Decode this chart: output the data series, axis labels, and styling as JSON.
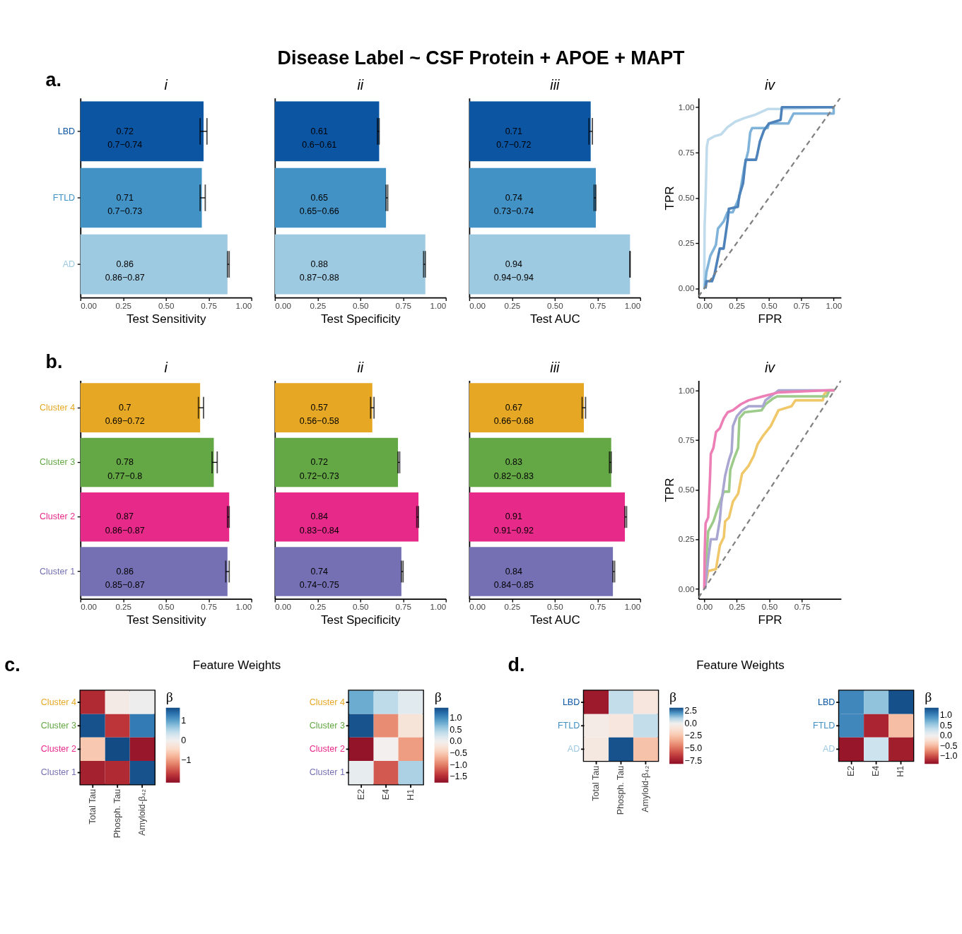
{
  "chart_data": [
    {
      "type": "bar",
      "orientation": "horizontal",
      "title": "i",
      "xlabel": "Test Sensitivity",
      "annotations": [
        "Disease Label ~ CSF Protein + APOE + MAPT",
        "a."
      ],
      "categories": [
        "LBD",
        "FTLD",
        "AD"
      ],
      "values": [
        0.72,
        0.71,
        0.86
      ],
      "colors": [
        "#0b55a3",
        "#4292c6",
        "#9ecae1"
      ],
      "errors": [
        [
          0.7,
          0.74
        ],
        [
          0.7,
          0.73
        ],
        [
          0.86,
          0.87
        ]
      ],
      "value_labels": [
        "0.72\n0.7−0.74",
        "0.71\n0.7−0.73",
        "0.86\n0.86−0.87"
      ],
      "xlim": [
        0,
        1
      ],
      "xticks": [
        {
          "value": 0,
          "label": "0.00"
        },
        {
          "value": 0.25,
          "label": "0.25"
        },
        {
          "value": 0.5,
          "label": "0.50"
        },
        {
          "value": 0.75,
          "label": "0.75"
        },
        {
          "value": 1,
          "label": "1.00"
        }
      ]
    },
    {
      "type": "bar",
      "orientation": "horizontal",
      "title": "ii",
      "xlabel": "Test Specificity",
      "tick_labels": "x",
      "categories": [
        null,
        null,
        null
      ],
      "values": [
        0.61,
        0.65,
        0.88
      ],
      "colors": [
        "#0b55a3",
        "#4292c6",
        "#9ecae1"
      ],
      "errors": [
        [
          0.6,
          0.61
        ],
        [
          0.65,
          0.66
        ],
        [
          0.87,
          0.88
        ]
      ],
      "value_labels": [
        "0.61\n0.6−0.61",
        "0.65\n0.65−0.66",
        "0.88\n0.87−0.88"
      ],
      "xlim": [
        0,
        1
      ],
      "xticks": [
        {
          "value": 0,
          "label": "0.00"
        },
        {
          "value": 0.25,
          "label": "0.25"
        },
        {
          "value": 0.5,
          "label": "0.50"
        },
        {
          "value": 0.75,
          "label": "0.75"
        },
        {
          "value": 1,
          "label": "1.00"
        }
      ]
    },
    {
      "type": "bar",
      "orientation": "horizontal",
      "title": "iii",
      "xlabel": "Test AUC",
      "tick_labels": "x",
      "categories": [
        null,
        null,
        null
      ],
      "values": [
        0.71,
        0.74,
        0.94
      ],
      "colors": [
        "#0b55a3",
        "#4292c6",
        "#9ecae1"
      ],
      "errors": [
        [
          0.7,
          0.72
        ],
        [
          0.73,
          0.74
        ],
        [
          0.94,
          0.94
        ]
      ],
      "value_labels": [
        "0.71\n0.7−0.72",
        "0.74\n0.73−0.74",
        "0.94\n0.94−0.94"
      ],
      "xlim": [
        0,
        1
      ],
      "xticks": [
        {
          "value": 0,
          "label": "0.00"
        },
        {
          "value": 0.25,
          "label": "0.25"
        },
        {
          "value": 0.5,
          "label": "0.50"
        },
        {
          "value": 0.75,
          "label": "0.75"
        },
        {
          "value": 1,
          "label": "1.00"
        }
      ]
    },
    {
      "type": "line",
      "title": "iv",
      "xlabel": "FPR",
      "ylabel": "TPR",
      "xlim": [
        -0.044,
        1.057
      ],
      "ylim": [
        -0.05,
        1.05
      ],
      "xticks": [
        {
          "value": 0,
          "label": "0.00"
        },
        {
          "value": 0.25,
          "label": "0.25"
        },
        {
          "value": 0.5,
          "label": "0.50"
        },
        {
          "value": 0.75,
          "label": "0.75"
        },
        {
          "value": 1,
          "label": "1.00"
        }
      ],
      "yticks": [
        {
          "value": 0,
          "label": "0.00"
        },
        {
          "value": 0.25,
          "label": "0.25"
        },
        {
          "value": 0.5,
          "label": "0.50"
        },
        {
          "value": 0.75,
          "label": "0.75"
        },
        {
          "value": 1,
          "label": "1.00"
        }
      ],
      "series": [
        {
          "color": "#c0dcec",
          "x": [
            0,
            0.003,
            0.01,
            0.02,
            0.03,
            0.08,
            0.13,
            0.18,
            0.24,
            0.31,
            0.4,
            0.49,
            0.6,
            1.0
          ],
          "values": [
            0,
            0.35,
            0.48,
            0.78,
            0.82,
            0.84,
            0.85,
            0.89,
            0.92,
            0.94,
            0.96,
            0.99,
            0.99,
            1.0
          ]
        },
        {
          "color": "#7fb3d9",
          "x": [
            0.003,
            0.017,
            0.047,
            0.09,
            0.106,
            0.15,
            0.18,
            0.22,
            0.27,
            0.31,
            0.34,
            0.355,
            0.37,
            0.49,
            0.5,
            0.65,
            0.69,
            1.0,
            1.0
          ],
          "values": [
            0,
            0.09,
            0.18,
            0.24,
            0.33,
            0.37,
            0.42,
            0.42,
            0.5,
            0.67,
            0.76,
            0.86,
            0.885,
            0.885,
            0.91,
            0.91,
            0.965,
            0.965,
            1.0
          ]
        },
        {
          "color": "#4d82ba",
          "x": [
            0.01,
            0.017,
            0.06,
            0.08,
            0.12,
            0.15,
            0.18,
            0.19,
            0.26,
            0.27,
            0.3,
            0.32,
            0.4,
            0.41,
            0.43,
            0.46,
            0.5,
            0.59,
            0.6,
            1.0
          ],
          "values": [
            0,
            0.04,
            0.04,
            0.08,
            0.22,
            0.22,
            0.37,
            0.44,
            0.45,
            0.51,
            0.58,
            0.71,
            0.71,
            0.74,
            0.81,
            0.87,
            0.91,
            0.93,
            1.0,
            1.0
          ]
        },
        {
          "type": "line",
          "color": "#808080",
          "line_style": "dashed",
          "x": [
            -0.044,
            1.05
          ],
          "values": [
            -0.044,
            1.05
          ]
        }
      ]
    },
    {
      "type": "bar",
      "orientation": "horizontal",
      "title": "i",
      "xlabel": "Test Sensitivity",
      "annotations": [
        "b."
      ],
      "categories": [
        "Cluster 4",
        "Cluster 3",
        "Cluster 2",
        "Cluster 1"
      ],
      "values": [
        0.7,
        0.78,
        0.87,
        0.86
      ],
      "colors": [
        "#e6a824",
        "#63a844",
        "#e7298a",
        "#7570b3"
      ],
      "errors": [
        [
          0.69,
          0.72
        ],
        [
          0.77,
          0.8
        ],
        [
          0.86,
          0.87
        ],
        [
          0.85,
          0.87
        ]
      ],
      "value_labels": [
        "0.7\n0.69−0.72",
        "0.78\n0.77−0.8",
        "0.87\n0.86−0.87",
        "0.86\n0.85−0.87"
      ],
      "xlim": [
        0,
        1
      ],
      "xticks": [
        {
          "value": 0,
          "label": "0.00"
        },
        {
          "value": 0.25,
          "label": "0.25"
        },
        {
          "value": 0.5,
          "label": "0.50"
        },
        {
          "value": 0.75,
          "label": "0.75"
        },
        {
          "value": 1,
          "label": "1.00"
        }
      ]
    },
    {
      "type": "bar",
      "orientation": "horizontal",
      "title": "ii",
      "xlabel": "Test Specificity",
      "tick_labels": "x",
      "categories": [
        null,
        null,
        null,
        null
      ],
      "values": [
        0.57,
        0.72,
        0.84,
        0.74
      ],
      "colors": [
        "#e6a824",
        "#63a844",
        "#e7298a",
        "#7570b3"
      ],
      "errors": [
        [
          0.56,
          0.58
        ],
        [
          0.72,
          0.73
        ],
        [
          0.83,
          0.84
        ],
        [
          0.74,
          0.75
        ]
      ],
      "value_labels": [
        "0.57\n0.56−0.58",
        "0.72\n0.72−0.73",
        "0.84\n0.83−0.84",
        "0.74\n0.74−0.75"
      ],
      "xlim": [
        0,
        1
      ],
      "xticks": [
        {
          "value": 0,
          "label": "0.00"
        },
        {
          "value": 0.25,
          "label": "0.25"
        },
        {
          "value": 0.5,
          "label": "0.50"
        },
        {
          "value": 0.75,
          "label": "0.75"
        },
        {
          "value": 1,
          "label": "1.00"
        }
      ]
    },
    {
      "type": "bar",
      "orientation": "horizontal",
      "title": "iii",
      "xlabel": "Test AUC",
      "tick_labels": "x",
      "categories": [
        null,
        null,
        null,
        null
      ],
      "values": [
        0.67,
        0.83,
        0.91,
        0.84
      ],
      "colors": [
        "#e6a824",
        "#63a844",
        "#e7298a",
        "#7570b3"
      ],
      "errors": [
        [
          0.66,
          0.68
        ],
        [
          0.82,
          0.83
        ],
        [
          0.91,
          0.92
        ],
        [
          0.84,
          0.85
        ]
      ],
      "value_labels": [
        "0.67\n0.66−0.68",
        "0.83\n0.82−0.83",
        "0.91\n0.91−0.92",
        "0.84\n0.84−0.85"
      ],
      "xlim": [
        0,
        1
      ],
      "xticks": [
        {
          "value": 0,
          "label": "0.00"
        },
        {
          "value": 0.25,
          "label": "0.25"
        },
        {
          "value": 0.5,
          "label": "0.50"
        },
        {
          "value": 0.75,
          "label": "0.75"
        },
        {
          "value": 1,
          "label": "1.00"
        }
      ]
    },
    {
      "type": "line",
      "title": "iv",
      "xlabel": "FPR",
      "ylabel": "TPR",
      "xlim": [
        -0.044,
        1.05
      ],
      "ylim": [
        -0.05,
        1.05
      ],
      "xticks": [
        {
          "value": 0,
          "label": "0.00"
        },
        {
          "value": 0.25,
          "label": "0.25"
        },
        {
          "value": 0.5,
          "label": "0.50"
        },
        {
          "value": 0.75,
          "label": "0.75"
        }
      ],
      "yticks": [
        {
          "value": 0,
          "label": "0.00"
        },
        {
          "value": 0.25,
          "label": "0.25"
        },
        {
          "value": 0.5,
          "label": "0.50"
        },
        {
          "value": 0.75,
          "label": "0.75"
        },
        {
          "value": 1,
          "label": "1.00"
        }
      ],
      "series": [
        {
          "color": "#f0c86a",
          "x": [
            0.007,
            0.03,
            0.09,
            0.12,
            0.15,
            0.16,
            0.19,
            0.22,
            0.26,
            0.29,
            0.34,
            0.38,
            0.41,
            0.45,
            0.51,
            0.57,
            0.67,
            0.7,
            0.91,
            0.92,
            0.95,
            1.0
          ],
          "values": [
            0.01,
            0.09,
            0.1,
            0.22,
            0.26,
            0.34,
            0.36,
            0.44,
            0.48,
            0.58,
            0.62,
            0.67,
            0.73,
            0.77,
            0.82,
            0.9,
            0.92,
            0.95,
            0.95,
            0.98,
            1.0,
            1.0
          ]
        },
        {
          "color": "#9ccb8a",
          "x": [
            0.003,
            0.03,
            0.07,
            0.1,
            0.15,
            0.19,
            0.2,
            0.23,
            0.26,
            0.27,
            0.31,
            0.44,
            0.47,
            0.53,
            0.56,
            0.94,
            0.96,
            1.0
          ],
          "values": [
            0.03,
            0.29,
            0.34,
            0.4,
            0.49,
            0.49,
            0.6,
            0.66,
            0.71,
            0.86,
            0.89,
            0.9,
            0.93,
            0.96,
            0.97,
            0.97,
            1.0,
            1.0
          ]
        },
        {
          "color": "#a9a7d1",
          "x": [
            0.007,
            0.03,
            0.05,
            0.095,
            0.12,
            0.13,
            0.16,
            0.19,
            0.21,
            0.22,
            0.25,
            0.29,
            0.34,
            0.45,
            0.47,
            0.57,
            1.0
          ],
          "values": [
            0,
            0.15,
            0.25,
            0.25,
            0.35,
            0.43,
            0.57,
            0.65,
            0.69,
            0.82,
            0.87,
            0.9,
            0.92,
            0.92,
            0.95,
            1.0,
            1.0
          ]
        },
        {
          "color": "#ec7fb5",
          "x": [
            0,
            0.003,
            0.01,
            0.03,
            0.044,
            0.05,
            0.07,
            0.09,
            0.12,
            0.15,
            0.18,
            0.22,
            0.28,
            0.34,
            0.45,
            0.57,
            0.94,
            1.0
          ],
          "values": [
            0,
            0.18,
            0.33,
            0.36,
            0.56,
            0.68,
            0.71,
            0.79,
            0.81,
            0.86,
            0.89,
            0.9,
            0.93,
            0.95,
            0.97,
            0.99,
            1.0,
            1.0
          ]
        },
        {
          "type": "line",
          "color": "#808080",
          "line_style": "dashed",
          "x": [
            -0.044,
            1.05
          ],
          "values": [
            -0.044,
            1.05
          ]
        }
      ]
    },
    {
      "type": "heatmap",
      "annotations": [
        "c.",
        "Feature Weights"
      ],
      "legend_title": "β",
      "categories": [
        "Total Tau",
        "Phosph. Tau",
        "Amyloid-β₄₂"
      ],
      "y_categories": [
        "Cluster 4",
        "Cluster 3",
        "Cluster 2",
        "Cluster 1"
      ],
      "cells": [
        [
          -1.8,
          -0.1,
          0.05
        ],
        [
          1.6,
          -1.7,
          1.3
        ],
        [
          -0.6,
          1.65,
          -2.0
        ],
        [
          -1.9,
          -1.8,
          1.6
        ]
      ],
      "clim": [
        -2.1,
        1.65
      ],
      "cticks": [
        {
          "value": -1,
          "label": "−1"
        },
        0,
        1
      ]
    },
    {
      "type": "heatmap",
      "legend_title": "β",
      "categories": [
        "E2",
        "E4",
        "H1"
      ],
      "y_categories": [
        "Cluster 4",
        "Cluster 3",
        "Cluster 2",
        "Cluster 1"
      ],
      "cells": [
        [
          0.8,
          0.4,
          0.15
        ],
        [
          1.4,
          -0.9,
          -0.2
        ],
        [
          -1.7,
          0.0,
          -0.8
        ],
        [
          0.1,
          -1.2,
          0.5
        ]
      ],
      "clim": [
        -1.75,
        1.45
      ],
      "cticks": [
        {
          "value": -1.5,
          "label": "−1.5"
        },
        {
          "value": -1,
          "label": "−1.0"
        },
        {
          "value": -0.5,
          "label": "−0.5"
        },
        {
          "value": 0,
          "label": "0.0"
        },
        {
          "value": 0.5,
          "label": "0.5"
        },
        {
          "value": 1,
          "label": "1.0"
        }
      ]
    },
    {
      "type": "heatmap",
      "annotations": [
        "d.",
        "Feature Weights"
      ],
      "legend_title": "β",
      "categories": [
        "Total Tau",
        "Phosph. Tau",
        "Amyloid-β₄₂"
      ],
      "y_categories": [
        "LBD",
        "FTLD",
        "AD"
      ],
      "cells": [
        [
          -7.5,
          0.8,
          -0.7
        ],
        [
          -0.3,
          -0.7,
          0.8
        ],
        [
          -0.6,
          3.0,
          -2.5
        ]
      ],
      "clim": [
        -8,
        3.1
      ],
      "cticks": [
        {
          "value": -7.5,
          "label": "−7.5"
        },
        {
          "value": -5,
          "label": "−5.0"
        },
        {
          "value": -2.5,
          "label": "−2.5"
        },
        {
          "value": 0,
          "label": "0.0"
        },
        2.5
      ]
    },
    {
      "type": "heatmap",
      "legend_title": "β",
      "categories": [
        "E2",
        "E4",
        "H1"
      ],
      "y_categories": [
        "LBD",
        "FTLD",
        "AD"
      ],
      "cells": [
        [
          1.0,
          0.6,
          1.35
        ],
        [
          1.0,
          -1.2,
          -0.45
        ],
        [
          -1.3,
          0.3,
          -1.25
        ]
      ],
      "clim": [
        -1.36,
        1.38
      ],
      "cticks": [
        {
          "value": -1,
          "label": "−1.0"
        },
        {
          "value": -0.5,
          "label": "−0.5"
        },
        {
          "value": 0,
          "label": "0.0"
        },
        {
          "value": 0.5,
          "label": "0.5"
        },
        {
          "value": 1,
          "label": "1.0"
        }
      ]
    }
  ]
}
